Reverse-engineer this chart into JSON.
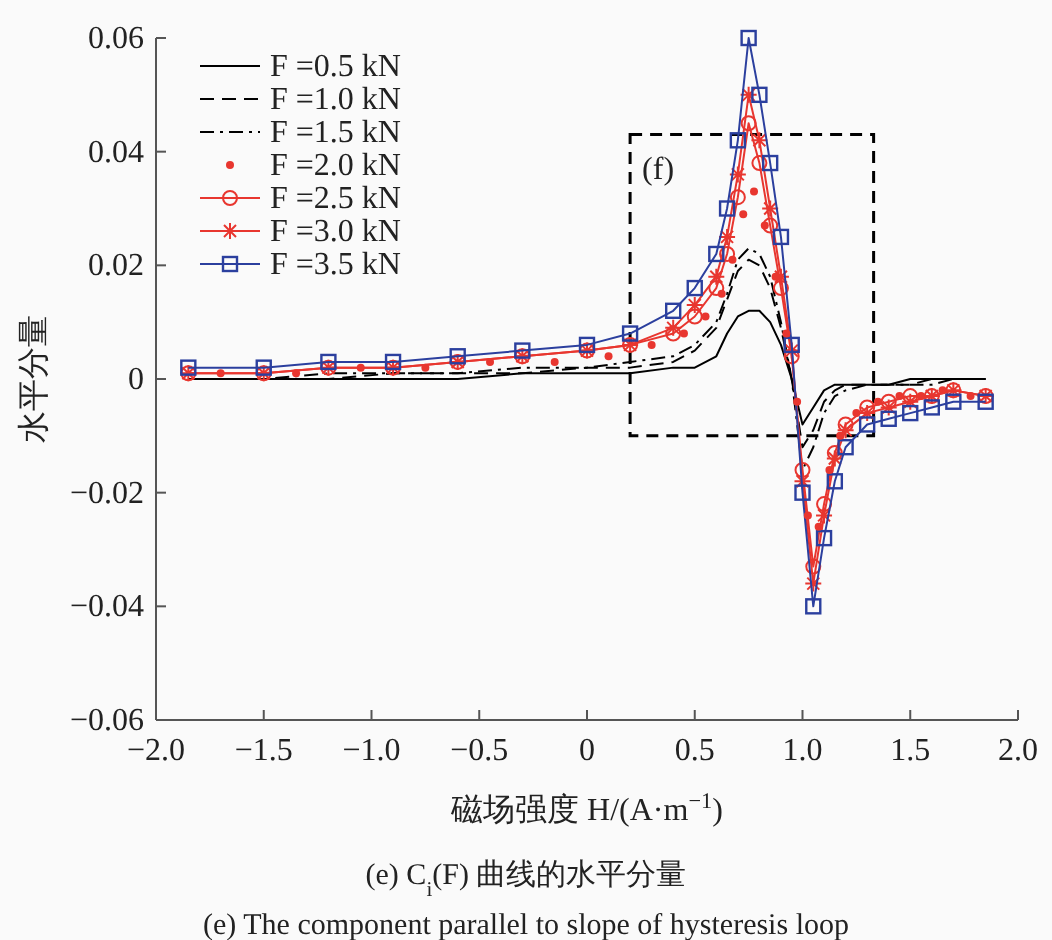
{
  "chart_data": {
    "type": "line",
    "xlabel": "磁场强度 H/(A·m$^{−1}$)",
    "ylabel": "水平分量",
    "legend": "top left",
    "xlim": [
      -2,
      2
    ],
    "ylim": [
      -0.06,
      0.06
    ],
    "xticks": [
      {
        "value": -2,
        "label": "−2.0"
      },
      {
        "value": -1.5,
        "label": "−1.5"
      },
      {
        "value": -1,
        "label": "−1.0"
      },
      {
        "value": -0.5,
        "label": "−0.5"
      },
      0,
      0.5,
      {
        "value": 1,
        "label": "1.0"
      },
      1.5,
      {
        "value": 2,
        "label": "2.0"
      }
    ],
    "yticks": [
      {
        "value": -0.06,
        "label": "−0.06"
      },
      {
        "value": -0.04,
        "label": "−0.04"
      },
      {
        "value": -0.02,
        "label": "−0.02"
      },
      0,
      0.02,
      0.04,
      0.06
    ],
    "x": [
      -1.85,
      -1.5,
      -1.2,
      -0.9,
      -0.6,
      -0.3,
      0,
      0.2,
      0.4,
      0.5,
      0.6,
      0.65,
      0.7,
      0.75,
      0.8,
      0.85,
      0.9,
      0.95,
      1.0,
      1.05,
      1.1,
      1.15,
      1.2,
      1.3,
      1.4,
      1.5,
      1.6,
      1.7,
      1.85
    ],
    "series": [
      {
        "name": "F =0.5 kN",
        "color": "#000000",
        "line_style": "solid",
        "marker": "none",
        "values": [
          0,
          0,
          0,
          0,
          0,
          0.001,
          0.001,
          0.001,
          0.002,
          0.002,
          0.004,
          0.008,
          0.011,
          0.012,
          0.012,
          0.01,
          0.006,
          0.0,
          -0.008,
          -0.005,
          -0.002,
          -0.001,
          -0.001,
          -0.001,
          -0.001,
          0,
          0,
          0,
          0
        ]
      },
      {
        "name": "F =1.0 kN",
        "color": "#000000",
        "line_style": "dashed",
        "marker": "none",
        "values": [
          0,
          0,
          0,
          0.001,
          0.001,
          0.001,
          0.002,
          0.002,
          0.003,
          0.005,
          0.009,
          0.014,
          0.019,
          0.021,
          0.02,
          0.016,
          0.009,
          0.0,
          -0.012,
          -0.009,
          -0.004,
          -0.002,
          -0.001,
          -0.001,
          -0.001,
          -0.001,
          0,
          0,
          0
        ]
      },
      {
        "name": "F =1.5 kN",
        "color": "#000000",
        "line_style": "dashdot",
        "marker": "none",
        "values": [
          0,
          0,
          0.001,
          0.001,
          0.001,
          0.002,
          0.002,
          0.003,
          0.004,
          0.006,
          0.01,
          0.015,
          0.021,
          0.023,
          0.022,
          0.018,
          0.01,
          0.0,
          -0.016,
          -0.012,
          -0.006,
          -0.003,
          -0.002,
          -0.001,
          -0.001,
          -0.001,
          -0.001,
          0,
          0
        ]
      },
      {
        "name": "F =2.0 kN",
        "type": "scatter",
        "color": "#e8362f",
        "marker": "circle",
        "x": [
          -1.7,
          -1.35,
          -1.05,
          -0.75,
          -0.45,
          -0.15,
          0.1,
          0.3,
          0.45,
          0.55,
          0.625,
          0.675,
          0.725,
          0.775,
          0.825,
          0.875,
          0.925,
          0.975,
          1.025,
          1.075,
          1.125,
          1.175,
          1.25,
          1.35,
          1.45,
          1.55,
          1.65,
          1.78
        ],
        "values": [
          0.001,
          0.001,
          0.002,
          0.002,
          0.003,
          0.003,
          0.004,
          0.006,
          0.008,
          0.011,
          0.015,
          0.021,
          0.029,
          0.033,
          0.027,
          0.018,
          0.008,
          -0.004,
          -0.024,
          -0.026,
          -0.016,
          -0.01,
          -0.006,
          -0.004,
          -0.003,
          -0.003,
          -0.002,
          -0.003
        ]
      },
      {
        "name": "F =2.5 kN",
        "color": "#e8362f",
        "line_style": "solid",
        "marker": "circle",
        "values": [
          0.001,
          0.001,
          0.002,
          0.002,
          0.003,
          0.004,
          0.005,
          0.006,
          0.008,
          0.011,
          0.016,
          0.022,
          0.032,
          0.045,
          0.038,
          0.027,
          0.016,
          0.004,
          -0.016,
          -0.033,
          -0.022,
          -0.013,
          -0.008,
          -0.005,
          -0.004,
          -0.003,
          -0.003,
          -0.002,
          -0.003
        ]
      },
      {
        "name": "F =3.0 kN",
        "color": "#e8362f",
        "line_style": "solid",
        "marker": "cross",
        "values": [
          0.001,
          0.001,
          0.002,
          0.002,
          0.003,
          0.004,
          0.005,
          0.006,
          0.009,
          0.013,
          0.018,
          0.025,
          0.036,
          0.05,
          0.042,
          0.03,
          0.018,
          0.005,
          -0.018,
          -0.036,
          -0.024,
          -0.014,
          -0.009,
          -0.006,
          -0.005,
          -0.004,
          -0.003,
          -0.002,
          -0.003
        ]
      },
      {
        "name": "F =3.5 kN",
        "color": "#2b3f9e",
        "line_style": "solid",
        "marker": "square",
        "values": [
          0.002,
          0.002,
          0.003,
          0.003,
          0.004,
          0.005,
          0.006,
          0.008,
          0.012,
          0.016,
          0.022,
          0.03,
          0.042,
          0.06,
          0.05,
          0.038,
          0.025,
          0.006,
          -0.02,
          -0.04,
          -0.028,
          -0.018,
          -0.012,
          -0.008,
          -0.007,
          -0.006,
          -0.005,
          -0.004,
          -0.004
        ]
      }
    ],
    "annotations": [
      "(f)",
      "(e) C$_{i}$(F) 曲线的水平分量",
      "(e) The component parallel to slope of hysteresis loop"
    ]
  }
}
